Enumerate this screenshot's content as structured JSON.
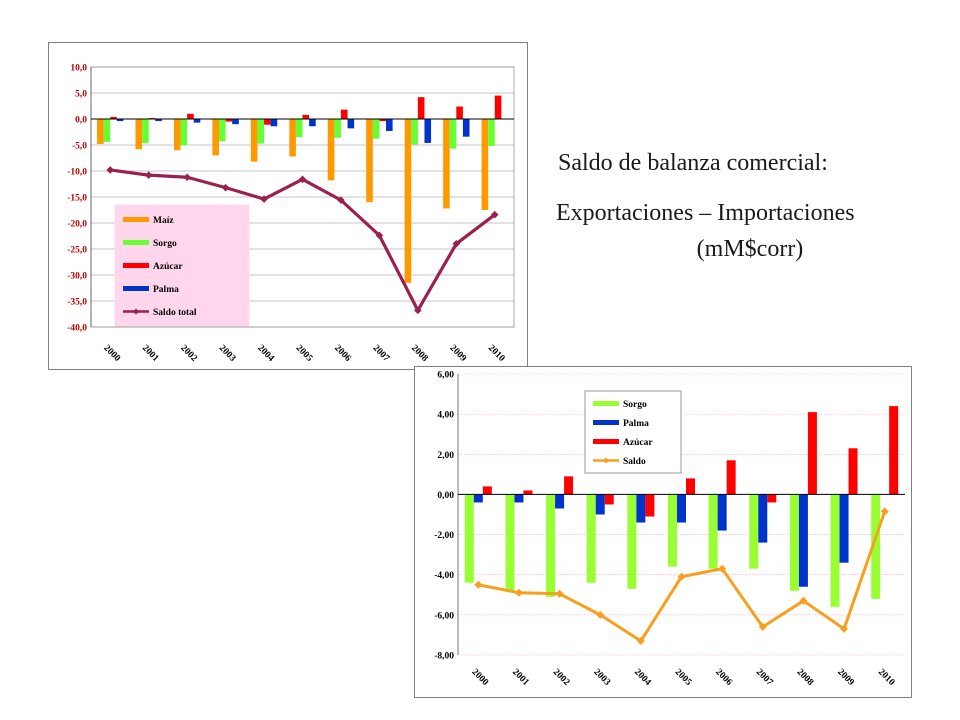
{
  "caption": {
    "line1": "Saldo de balanza comercial:",
    "line2": "Exportaciones – Importaciones",
    "line3": "(mM$corr)"
  },
  "chart_data": [
    {
      "type": "bar",
      "categories": [
        "2000",
        "2001",
        "2002",
        "2003",
        "2004",
        "2005",
        "2006",
        "2007",
        "2008",
        "2009",
        "2010"
      ],
      "ylim": [
        -40,
        10
      ],
      "yticks": [
        "10,0",
        "5,0",
        "0,0",
        "-5,0",
        "-10,0",
        "-15,0",
        "-20,0",
        "-25,0",
        "-30,0",
        "-35,0",
        "-40,0"
      ],
      "legend_position": "lower-left",
      "series": [
        {
          "name": "Maíz",
          "kind": "bar",
          "color": "#FF9900",
          "values": [
            -4.8,
            -5.8,
            -6.0,
            -7.0,
            -8.2,
            -7.2,
            -11.8,
            -16.0,
            -31.5,
            -17.2,
            -17.5
          ]
        },
        {
          "name": "Sorgo",
          "kind": "bar",
          "color": "#66FF33",
          "values": [
            -4.4,
            -4.6,
            -5.1,
            -4.3,
            -4.7,
            -3.5,
            -3.6,
            -3.8,
            -4.9,
            -5.7,
            -5.2
          ]
        },
        {
          "name": "Azúcar",
          "kind": "bar",
          "color": "#FF0000",
          "values": [
            0.4,
            0.2,
            1.0,
            -0.5,
            -1.1,
            0.8,
            1.8,
            -0.4,
            4.2,
            2.4,
            4.5
          ]
        },
        {
          "name": "Palma",
          "kind": "bar",
          "color": "#0033CC",
          "values": [
            -0.4,
            -0.4,
            -0.7,
            -1.0,
            -1.4,
            -1.4,
            -1.8,
            -2.3,
            -4.6,
            -3.4,
            0.0
          ]
        },
        {
          "name": "Saldo total",
          "kind": "line",
          "color": "#99204F",
          "values": [
            -9.8,
            -10.8,
            -11.2,
            -13.2,
            -15.4,
            -11.6,
            -15.6,
            -22.4,
            -36.8,
            -24.0,
            -18.4
          ]
        }
      ]
    },
    {
      "type": "bar",
      "categories": [
        "2000",
        "2001",
        "2002",
        "2003",
        "2004",
        "2005",
        "2006",
        "2007",
        "2008",
        "2009",
        "2010"
      ],
      "ylim": [
        -8,
        6
      ],
      "yticks": [
        "6,00",
        "4,00",
        "2,00",
        "0,00",
        "-2,00",
        "-4,00",
        "-6,00",
        "-8,00"
      ],
      "grid": true,
      "legend_position": "top-center",
      "series": [
        {
          "name": "Sorgo",
          "kind": "bar",
          "color": "#99FF33",
          "values": [
            -4.4,
            -4.8,
            -5.1,
            -4.4,
            -4.7,
            -3.6,
            -3.7,
            -3.7,
            -4.8,
            -5.6,
            -5.2
          ]
        },
        {
          "name": "Palma",
          "kind": "bar",
          "color": "#0033CC",
          "values": [
            -0.4,
            -0.4,
            -0.7,
            -1.0,
            -1.4,
            -1.4,
            -1.8,
            -2.4,
            -4.6,
            -3.4,
            0.0
          ]
        },
        {
          "name": "Azúcar",
          "kind": "bar",
          "color": "#FF0000",
          "values": [
            0.4,
            0.2,
            0.9,
            -0.5,
            -1.1,
            0.8,
            1.7,
            -0.4,
            4.1,
            2.3,
            4.4
          ]
        },
        {
          "name": "Saldo",
          "kind": "line",
          "color": "#F7A01E",
          "values": [
            -4.5,
            -4.9,
            -4.95,
            -6.0,
            -7.3,
            -4.1,
            -3.7,
            -6.6,
            -5.3,
            -6.7,
            -0.85
          ]
        }
      ]
    }
  ]
}
